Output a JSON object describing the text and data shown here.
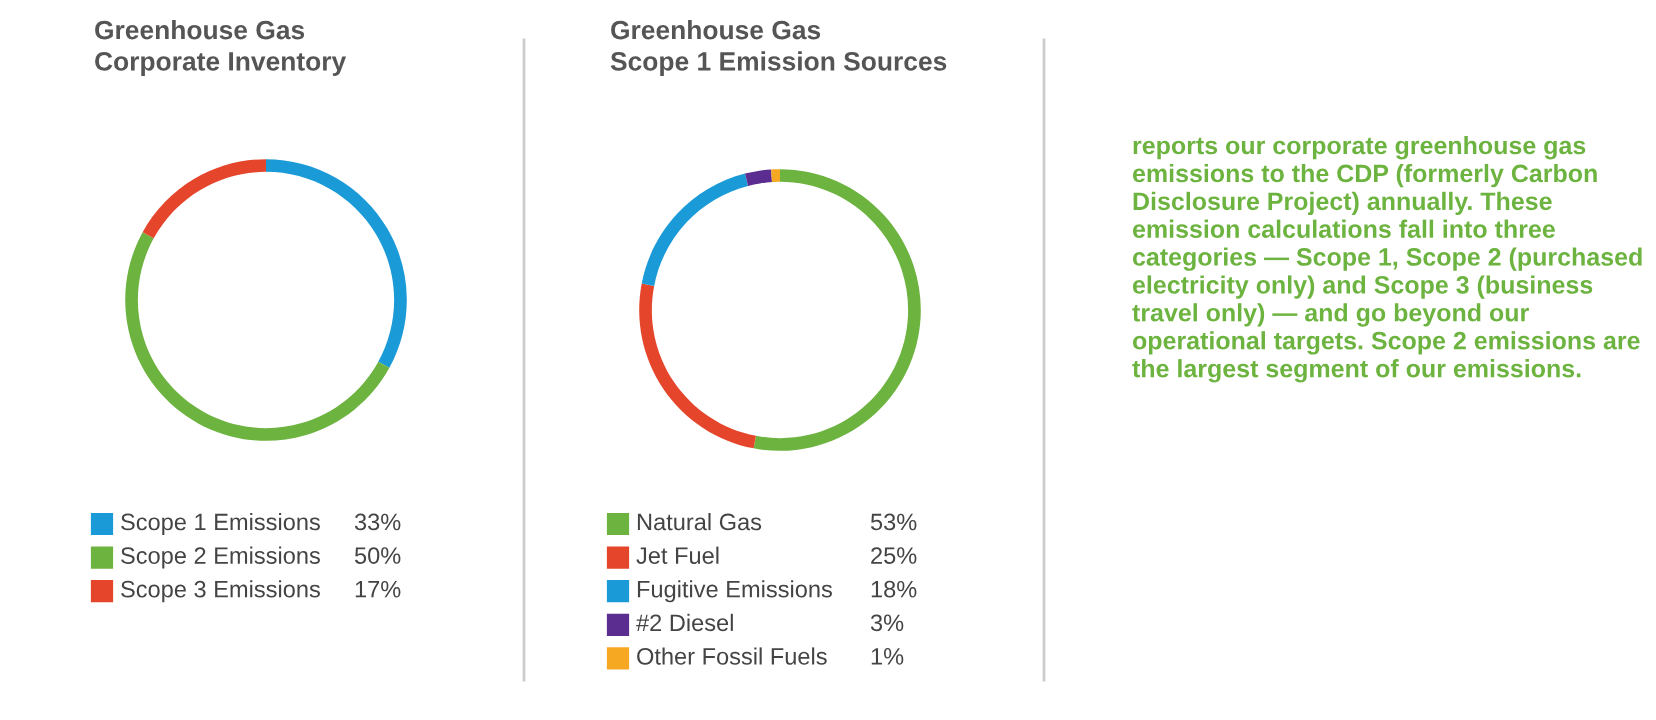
{
  "chart_data": [
    {
      "type": "donut",
      "title": "Greenhouse Gas\nCorporate Inventory",
      "categories": [
        "Scope 1 Emissions",
        "Scope 2 Emissions",
        "Scope 3 Emissions"
      ],
      "values": [
        33,
        50,
        17
      ],
      "colors": [
        "#1b9ad8",
        "#6cb33f",
        "#e5462b"
      ],
      "value_labels": [
        "33%",
        "50%",
        "17%"
      ],
      "legend": "bottom"
    },
    {
      "type": "donut",
      "title": "Greenhouse Gas\nScope 1 Emission Sources",
      "categories": [
        "Natural Gas",
        "Jet Fuel",
        "Fugitive Emissions",
        "#2 Diesel",
        "Other Fossil Fuels"
      ],
      "values": [
        53,
        25,
        18,
        3,
        1
      ],
      "colors": [
        "#6cb33f",
        "#e5462b",
        "#1b9ad8",
        "#5c2d91",
        "#f7a823"
      ],
      "value_labels": [
        "53%",
        "25%",
        "18%",
        "3%",
        "1%"
      ],
      "legend": "bottom"
    },
    {
      "type": "other",
      "annotations": [
        "reports our corporate greenhouse gas emissions to the CDP (formerly Carbon Disclosure Project) annually. These emission calculations fall into three categories — Scope 1, Scope 2 (purchased electricity only) and Scope 3 (business travel only) — and go beyond our operational targets. Scope 2 emissions are the largest segment of our emissions."
      ]
    }
  ]
}
